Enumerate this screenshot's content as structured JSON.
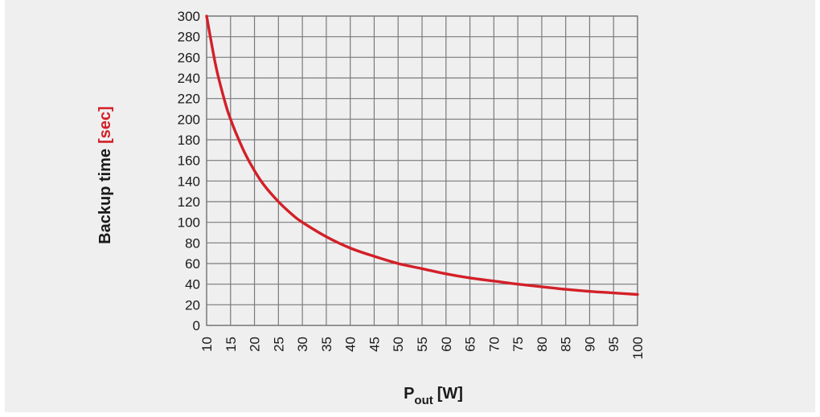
{
  "chart_data": {
    "type": "line",
    "title": "",
    "xlabel": {
      "main": "P",
      "sub": "out",
      "unit": "[W]"
    },
    "ylabel": {
      "main": "Backup time",
      "unit": "[sec]"
    },
    "xlim": [
      10,
      100
    ],
    "ylim": [
      0,
      300
    ],
    "x_ticks": [
      10,
      15,
      20,
      25,
      30,
      35,
      40,
      45,
      50,
      55,
      60,
      65,
      70,
      75,
      80,
      85,
      90,
      95,
      100
    ],
    "y_ticks": [
      0,
      20,
      40,
      60,
      80,
      100,
      120,
      140,
      160,
      180,
      200,
      220,
      240,
      260,
      280,
      300
    ],
    "grid": true,
    "series": [
      {
        "color": "#d32027",
        "x": [
          10,
          12,
          14,
          15,
          16,
          18,
          20,
          22,
          25,
          28,
          30,
          35,
          40,
          45,
          50,
          55,
          60,
          65,
          70,
          75,
          80,
          85,
          90,
          95,
          100
        ],
        "y": [
          300,
          250,
          214,
          200,
          188,
          167,
          150,
          136,
          120,
          107,
          100,
          86,
          75,
          67,
          60,
          55,
          50,
          46,
          43,
          40,
          37.5,
          35,
          33,
          31.5,
          30
        ]
      }
    ]
  },
  "colors": {
    "background": "#efeff0",
    "grid": "#7a7a7a",
    "curve": "#d32027",
    "unit_accent": "#d32027"
  }
}
